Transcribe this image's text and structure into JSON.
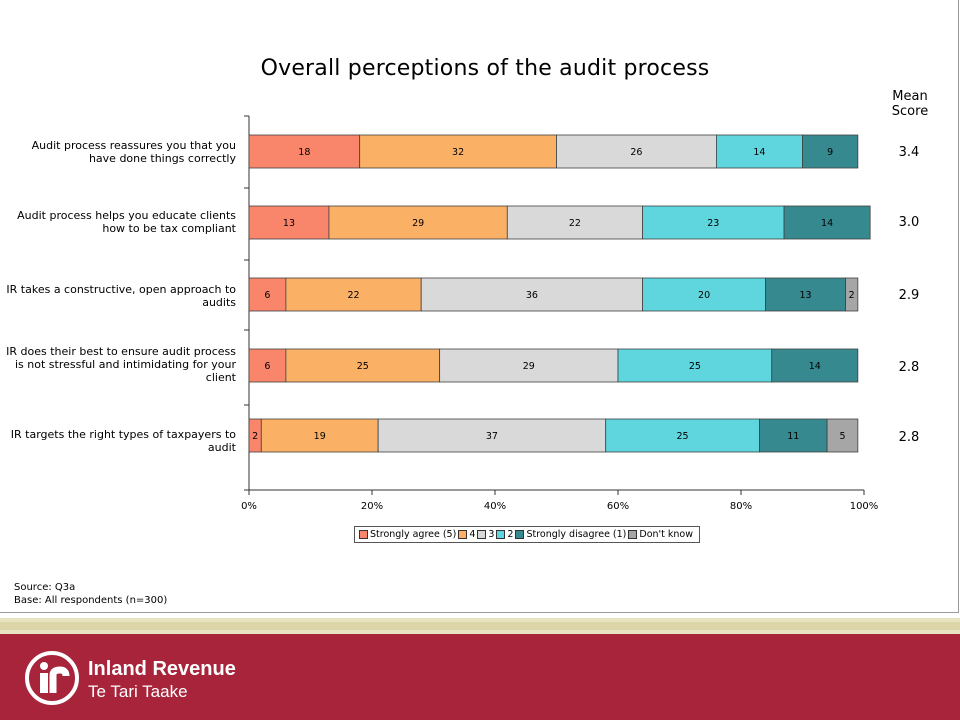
{
  "chart_data": {
    "type": "bar",
    "orientation": "horizontal",
    "stacked": true,
    "title": "Overall perceptions of the audit process",
    "mean_header": "Mean Score",
    "categories": [
      "Audit process reassures you that you have done things correctly",
      "Audit process helps you educate clients how to be tax compliant",
      "IR takes a constructive, open approach to audits",
      "IR does their best to ensure audit process is not stressful and intimidating for your client",
      "IR targets the right types of taxpayers to audit"
    ],
    "series": [
      {
        "name": "Strongly agree (5)",
        "color": "#f9856b",
        "values": [
          18,
          13,
          6,
          6,
          2
        ]
      },
      {
        "name": "4",
        "color": "#fbb165",
        "values": [
          32,
          29,
          22,
          25,
          19
        ]
      },
      {
        "name": "3",
        "color": "#d9d9d9",
        "values": [
          26,
          22,
          36,
          29,
          37
        ]
      },
      {
        "name": "2",
        "color": "#5fd6dd",
        "values": [
          14,
          23,
          20,
          25,
          25
        ]
      },
      {
        "name": "Strongly disagree (1)",
        "color": "#368a8f",
        "values": [
          9,
          14,
          13,
          14,
          11
        ]
      },
      {
        "name": "Don't know",
        "color": "#a6a6a6",
        "values": [
          null,
          null,
          2,
          null,
          5
        ]
      }
    ],
    "mean_scores": [
      "3.4",
      "3.0",
      "2.9",
      "2.8",
      "2.8"
    ],
    "xlim": [
      0,
      100
    ],
    "xticks": [
      "0%",
      "20%",
      "40%",
      "60%",
      "80%",
      "100%"
    ],
    "legend_position": "bottom",
    "grid": false
  },
  "source": "Source: Q3a",
  "base": "Base: All respondents (n=300)",
  "brand": {
    "name": "Inland Revenue",
    "subname": "Te Tari Taake"
  }
}
